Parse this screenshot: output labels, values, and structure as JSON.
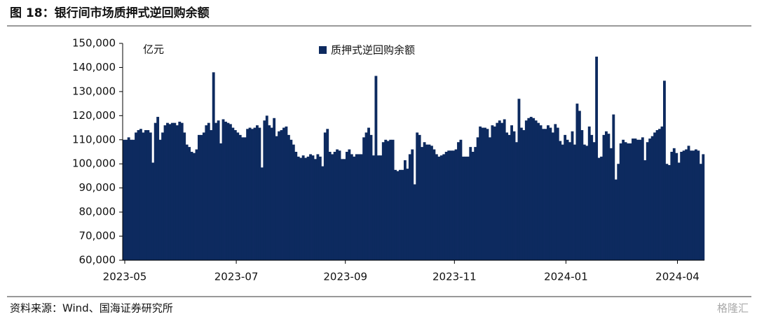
{
  "header": {
    "title": "图 18：银行间市场质押式逆回购余额"
  },
  "footer": {
    "source": "资料来源：Wind、国海证券研究所"
  },
  "watermark": "格隆汇",
  "chart_data": {
    "type": "bar",
    "y_unit": "亿元",
    "legend": "top",
    "categories": [
      "2023-05",
      null,
      null,
      null,
      null,
      null,
      null,
      null,
      null,
      null,
      null,
      null,
      null,
      null,
      null,
      null,
      null,
      null,
      null,
      null,
      null,
      null,
      null,
      null,
      null,
      null,
      null,
      null,
      null,
      null,
      null,
      null,
      null,
      null,
      null,
      null,
      null,
      null,
      null,
      null,
      null,
      null,
      null,
      null,
      null,
      null,
      "2023-07",
      null,
      null,
      null,
      null,
      null,
      null,
      null,
      null,
      null,
      null,
      null,
      null,
      null,
      null,
      null,
      null,
      null,
      null,
      null,
      null,
      null,
      null,
      null,
      null,
      null,
      null,
      null,
      null,
      null,
      null,
      null,
      null,
      null,
      null,
      null,
      null,
      null,
      null,
      null,
      null,
      null,
      null,
      null,
      null,
      "2023-09",
      null,
      null,
      null,
      null,
      null,
      null,
      null,
      null,
      null,
      null,
      null,
      null,
      null,
      null,
      null,
      null,
      null,
      null,
      null,
      null,
      null,
      null,
      null,
      null,
      null,
      null,
      null,
      null,
      null,
      null,
      null,
      null,
      null,
      null,
      null,
      null,
      null,
      null,
      null,
      null,
      null,
      null,
      null,
      null,
      "2023-11",
      null,
      null,
      null,
      null,
      null,
      null,
      null,
      null,
      null,
      null,
      null,
      null,
      null,
      null,
      null,
      null,
      null,
      null,
      null,
      null,
      null,
      null,
      null,
      null,
      null,
      null,
      null,
      null,
      null,
      null,
      null,
      null,
      null,
      null,
      null,
      null,
      null,
      null,
      null,
      null,
      null,
      null,
      null,
      null,
      null,
      "2024-01",
      null,
      null,
      null,
      null,
      null,
      null,
      null,
      null,
      null,
      null,
      null,
      null,
      null,
      null,
      null,
      null,
      null,
      null,
      null,
      null,
      null,
      null,
      null,
      null,
      null,
      null,
      null,
      null,
      null,
      null,
      null,
      null,
      null,
      null,
      null,
      null,
      null,
      null,
      null,
      null,
      null,
      null,
      null,
      null,
      null,
      "2024-04",
      null,
      null,
      null,
      null,
      null,
      null,
      null,
      null,
      null,
      null,
      null
    ],
    "series": [
      {
        "name": "质押式逆回购余额",
        "color": "#0d2a5f",
        "values": [
          110000,
          110000,
          111000,
          110000,
          110000,
          113000,
          114000,
          114500,
          113000,
          114000,
          114000,
          113000,
          100500,
          117000,
          119500,
          110000,
          113000,
          116000,
          117000,
          116500,
          117000,
          117000,
          116000,
          117500,
          117000,
          113000,
          108000,
          107000,
          105000,
          104500,
          106000,
          112000,
          112000,
          113000,
          116000,
          117000,
          114000,
          138000,
          117000,
          118000,
          108500,
          118500,
          117500,
          117000,
          116500,
          115000,
          114000,
          113000,
          112000,
          111000,
          111000,
          114500,
          115000,
          114500,
          115000,
          116000,
          115000,
          98500,
          118000,
          120000,
          116000,
          115000,
          119000,
          111500,
          113500,
          114000,
          115000,
          115500,
          112000,
          110000,
          108000,
          105000,
          103000,
          102500,
          103500,
          102500,
          103000,
          104000,
          103500,
          102000,
          104000,
          103000,
          99000,
          113000,
          114500,
          105000,
          104000,
          105000,
          106000,
          105500,
          102000,
          102000,
          105000,
          106000,
          104000,
          103000,
          104000,
          104000,
          104000,
          111000,
          113000,
          115000,
          112000,
          103500,
          136500,
          103500,
          103500,
          109000,
          110000,
          109500,
          110000,
          110000,
          97500,
          97000,
          97500,
          97500,
          101500,
          98000,
          104000,
          106000,
          91500,
          113000,
          112000,
          107000,
          109000,
          108000,
          108000,
          107500,
          106000,
          104000,
          103000,
          103500,
          104000,
          105000,
          105500,
          105500,
          105500,
          106000,
          109000,
          110000,
          103000,
          103000,
          103000,
          107000,
          105000,
          107000,
          111000,
          115500,
          115000,
          115000,
          114500,
          111000,
          116000,
          115500,
          117000,
          118000,
          117000,
          118500,
          113000,
          112000,
          116000,
          113500,
          109000,
          127000,
          115000,
          114000,
          118000,
          119000,
          119500,
          119000,
          118000,
          117000,
          116000,
          114500,
          114500,
          116000,
          115000,
          113000,
          116500,
          115000,
          109500,
          108000,
          112000,
          110000,
          109000,
          113500,
          108000,
          125000,
          122000,
          114000,
          108000,
          107500,
          115500,
          112000,
          109000,
          144500,
          102500,
          103000,
          112000,
          113500,
          112500,
          106500,
          120500,
          93500,
          100000,
          108500,
          110000,
          109000,
          108500,
          108500,
          110500,
          110500,
          110000,
          110000,
          111000,
          101500,
          109000,
          110500,
          111500,
          113000,
          114000,
          114500,
          115500,
          134500,
          100000,
          99500,
          105000,
          106500,
          104500,
          100500,
          105000,
          105500,
          106000,
          107500,
          105500,
          105500,
          106000,
          105500,
          100000,
          104000
        ]
      }
    ],
    "ylim": [
      60000,
      150000
    ],
    "yticks": [
      {
        "value": 60000,
        "label": "60,000"
      },
      {
        "value": 70000,
        "label": "70,000"
      },
      {
        "value": 80000,
        "label": "80,000"
      },
      {
        "value": 90000,
        "label": "90,000"
      },
      {
        "value": 100000,
        "label": "100,000"
      },
      {
        "value": 110000,
        "label": "110,000"
      },
      {
        "value": 120000,
        "label": "120,000"
      },
      {
        "value": 130000,
        "label": "130,000"
      },
      {
        "value": 140000,
        "label": "140,000"
      },
      {
        "value": 150000,
        "label": "150,000"
      }
    ],
    "grid": false
  }
}
